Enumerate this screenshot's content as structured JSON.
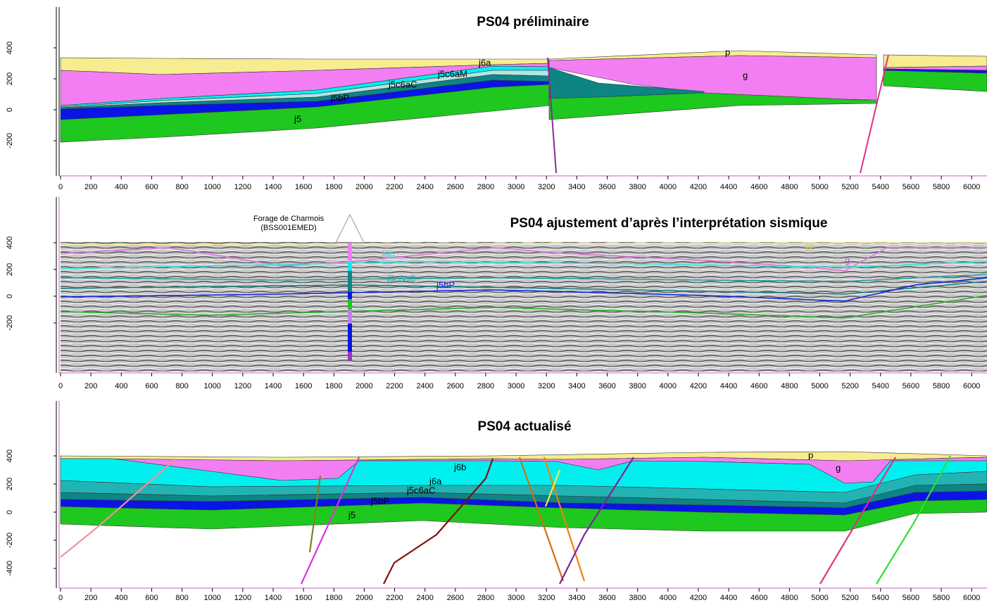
{
  "panels": [
    {
      "title": "PS04 préliminaire",
      "y_ticks": [
        400,
        200,
        0,
        -200
      ],
      "x_ticks": [
        0,
        200,
        400,
        600,
        800,
        1000,
        1200,
        1400,
        1600,
        1800,
        2000,
        2200,
        2400,
        2600,
        2800,
        3000,
        3200,
        3400,
        3600,
        3800,
        4000,
        4200,
        4400,
        4600,
        4800,
        5000,
        5200,
        5400,
        5600,
        5800,
        6000
      ],
      "layer_labels": [
        "p",
        "g",
        "j6a",
        "j5c6aM",
        "j5c6aC",
        "j5bP",
        "j5"
      ]
    },
    {
      "title": "PS04 ajustement d’après l’interprétation sismique",
      "well": {
        "name": "Forage de Charmois",
        "code": "(BSS001EMED)"
      },
      "y_ticks": [
        400,
        200,
        0,
        -200
      ],
      "x_ticks": [
        0,
        200,
        400,
        600,
        800,
        1000,
        1200,
        1400,
        1600,
        1800,
        2000,
        2200,
        2400,
        2600,
        2800,
        3000,
        3200,
        3400,
        3600,
        3800,
        4000,
        4200,
        4400,
        4600,
        4800,
        5000,
        5200,
        5400,
        5600,
        5800,
        6000
      ],
      "layer_labels": [
        "j6b",
        "j5c6aC",
        "j5bP",
        "p",
        "g"
      ]
    },
    {
      "title": "PS04 actualisé",
      "y_ticks": [
        400,
        200,
        0,
        -200,
        -400
      ],
      "x_ticks": [
        0,
        200,
        400,
        600,
        800,
        1000,
        1200,
        1400,
        1600,
        1800,
        2000,
        2200,
        2400,
        2600,
        2800,
        3000,
        3200,
        3400,
        3600,
        3800,
        4000,
        4200,
        4400,
        4600,
        4800,
        5000,
        5200,
        5400,
        5600,
        5800,
        6000
      ],
      "layer_labels": [
        "j6b",
        "j6a",
        "j5c6aC",
        "j5bP",
        "j5",
        "p",
        "g"
      ]
    }
  ]
}
